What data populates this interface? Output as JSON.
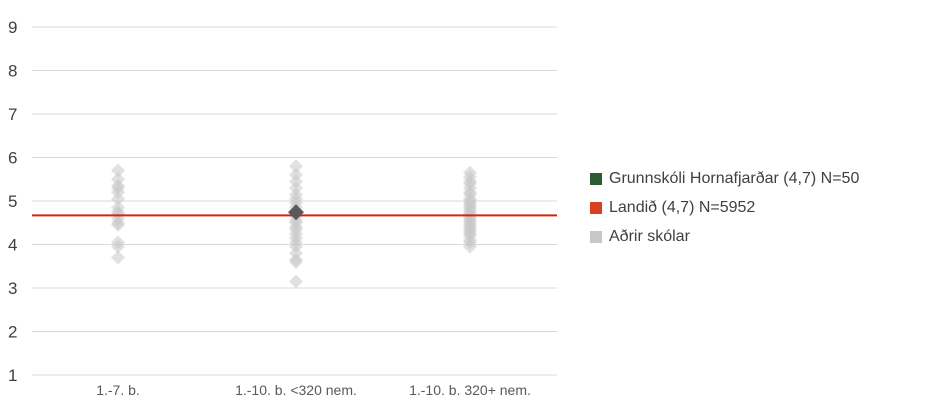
{
  "chart_data": {
    "type": "scatter",
    "categories": [
      "1.-7. b.",
      "1.-10. b. <320 nem.",
      "1.-10. b. 320+ nem."
    ],
    "ylim": [
      1,
      9
    ],
    "yticks": [
      "1",
      "2",
      "3",
      "4",
      "5",
      "6",
      "7",
      "8",
      "9"
    ],
    "grid": true,
    "legend_position": "right",
    "reference_line": {
      "name": "Landið (4,7) N=5952",
      "value": 4.67,
      "color": "#d9230f"
    },
    "series": [
      {
        "name": "Aðrir skólar",
        "color": "#c8c8c8",
        "points": [
          {
            "category": 0,
            "value": 5.7
          },
          {
            "category": 0,
            "value": 5.5
          },
          {
            "category": 0,
            "value": 5.35
          },
          {
            "category": 0,
            "value": 5.3
          },
          {
            "category": 0,
            "value": 5.2
          },
          {
            "category": 0,
            "value": 5.05
          },
          {
            "category": 0,
            "value": 4.85
          },
          {
            "category": 0,
            "value": 4.75
          },
          {
            "category": 0,
            "value": 4.7
          },
          {
            "category": 0,
            "value": 4.6
          },
          {
            "category": 0,
            "value": 4.5
          },
          {
            "category": 0,
            "value": 4.45
          },
          {
            "category": 0,
            "value": 4.05
          },
          {
            "category": 0,
            "value": 3.95
          },
          {
            "category": 0,
            "value": 3.7
          },
          {
            "category": 1,
            "value": 5.8
          },
          {
            "category": 1,
            "value": 5.6
          },
          {
            "category": 1,
            "value": 5.45
          },
          {
            "category": 1,
            "value": 5.3
          },
          {
            "category": 1,
            "value": 5.15
          },
          {
            "category": 1,
            "value": 5.05
          },
          {
            "category": 1,
            "value": 4.95
          },
          {
            "category": 1,
            "value": 4.85
          },
          {
            "category": 1,
            "value": 4.75
          },
          {
            "category": 1,
            "value": 4.65
          },
          {
            "category": 1,
            "value": 4.55
          },
          {
            "category": 1,
            "value": 4.5
          },
          {
            "category": 1,
            "value": 4.4
          },
          {
            "category": 1,
            "value": 4.35
          },
          {
            "category": 1,
            "value": 4.25
          },
          {
            "category": 1,
            "value": 4.15
          },
          {
            "category": 1,
            "value": 4.05
          },
          {
            "category": 1,
            "value": 3.95
          },
          {
            "category": 1,
            "value": 3.8
          },
          {
            "category": 1,
            "value": 3.65
          },
          {
            "category": 1,
            "value": 3.6
          },
          {
            "category": 1,
            "value": 3.15
          },
          {
            "category": 2,
            "value": 5.65
          },
          {
            "category": 2,
            "value": 5.55
          },
          {
            "category": 2,
            "value": 5.45
          },
          {
            "category": 2,
            "value": 5.4
          },
          {
            "category": 2,
            "value": 5.3
          },
          {
            "category": 2,
            "value": 5.2
          },
          {
            "category": 2,
            "value": 5.15
          },
          {
            "category": 2,
            "value": 5.05
          },
          {
            "category": 2,
            "value": 5.0
          },
          {
            "category": 2,
            "value": 4.95
          },
          {
            "category": 2,
            "value": 4.9
          },
          {
            "category": 2,
            "value": 4.85
          },
          {
            "category": 2,
            "value": 4.8
          },
          {
            "category": 2,
            "value": 4.75
          },
          {
            "category": 2,
            "value": 4.7
          },
          {
            "category": 2,
            "value": 4.65
          },
          {
            "category": 2,
            "value": 4.6
          },
          {
            "category": 2,
            "value": 4.55
          },
          {
            "category": 2,
            "value": 4.5
          },
          {
            "category": 2,
            "value": 4.45
          },
          {
            "category": 2,
            "value": 4.4
          },
          {
            "category": 2,
            "value": 4.35
          },
          {
            "category": 2,
            "value": 4.3
          },
          {
            "category": 2,
            "value": 4.25
          },
          {
            "category": 2,
            "value": 4.2
          },
          {
            "category": 2,
            "value": 4.1
          },
          {
            "category": 2,
            "value": 4.05
          },
          {
            "category": 2,
            "value": 3.95
          }
        ]
      },
      {
        "name": "Grunnskóli Hornafjarðar (4,7) N=50",
        "color": "#595959",
        "points": [
          {
            "category": 1,
            "value": 4.74
          }
        ]
      }
    ],
    "legend": [
      {
        "label": "Grunnskóli Hornafjarðar (4,7) N=50",
        "color": "#2e5b31"
      },
      {
        "label": "Landið (4,7) N=5952",
        "color": "#d9411e"
      },
      {
        "label": "Aðrir skólar",
        "color": "#c8c8c8"
      }
    ]
  }
}
